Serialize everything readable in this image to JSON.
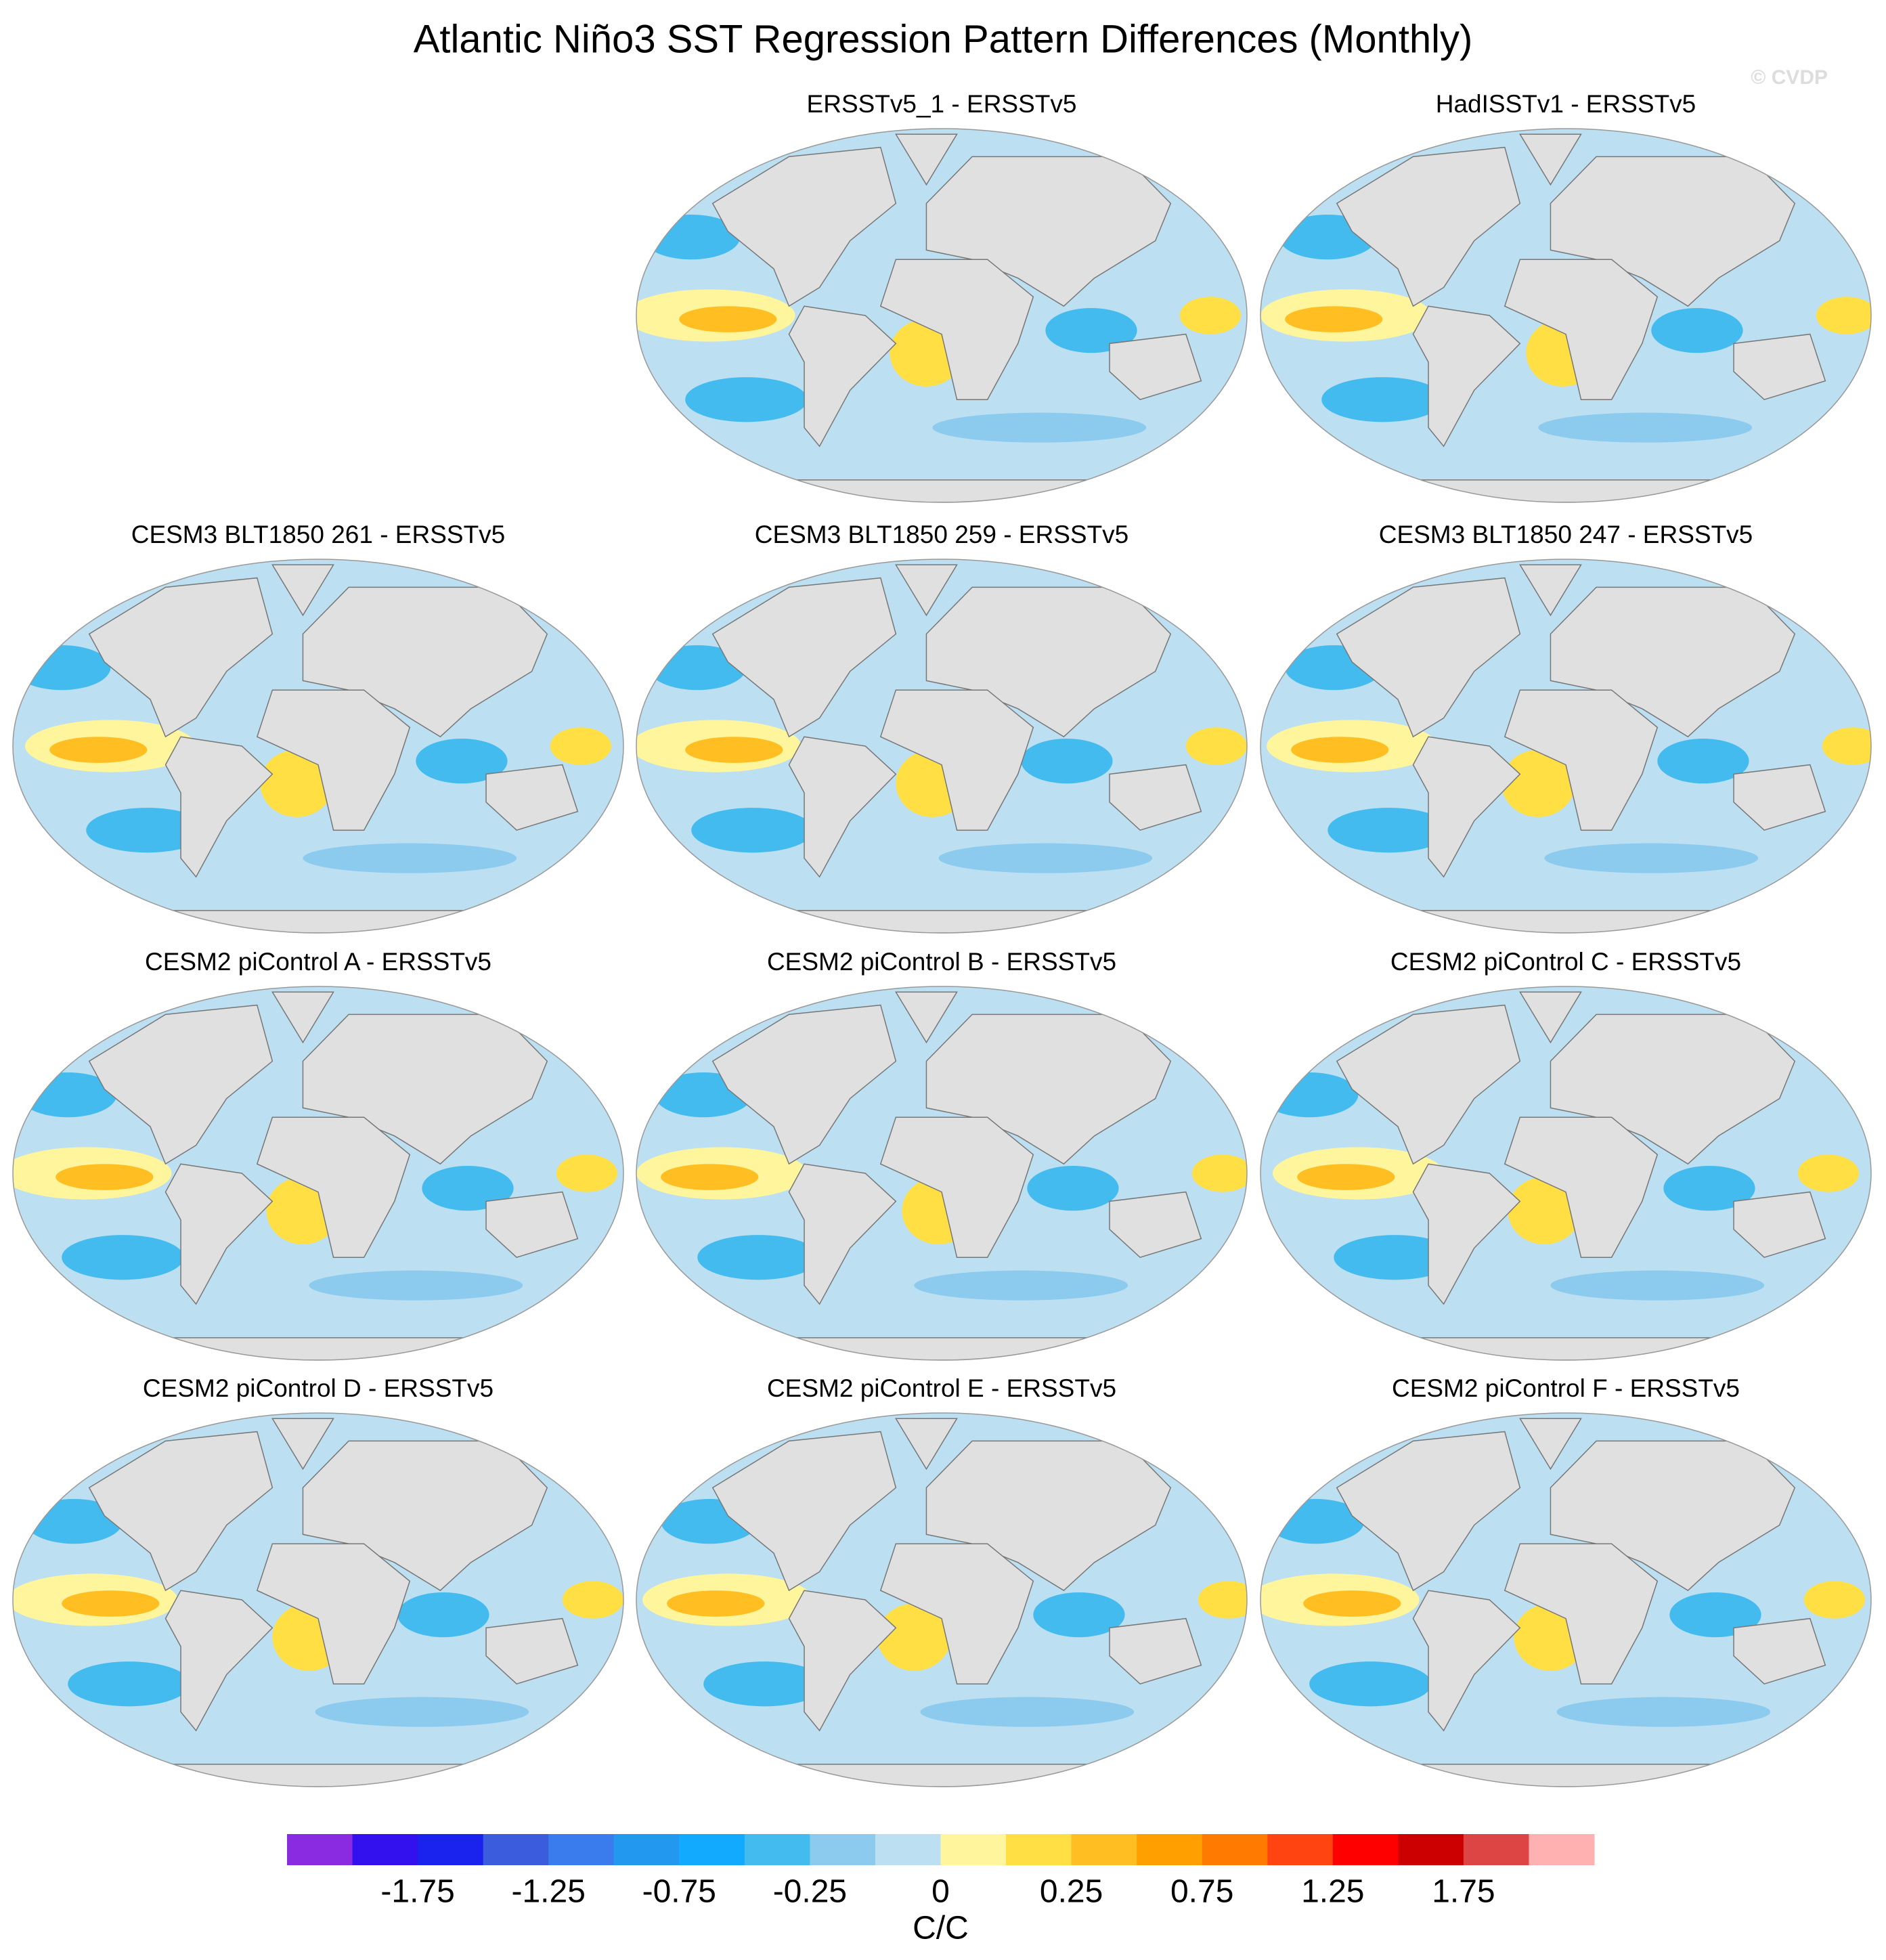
{
  "title": "Atlantic Niño3 SST Regression Pattern Differences (Monthly)",
  "watermark": "© CVDP",
  "panels": [
    {
      "title": "ERSSTv5_1 - ERSSTv5"
    },
    {
      "title": "HadISSTv1 - ERSSTv5"
    },
    {
      "title": "CESM3 BLT1850 261 - ERSSTv5"
    },
    {
      "title": "CESM3 BLT1850 259 - ERSSTv5"
    },
    {
      "title": "CESM3 BLT1850 247 - ERSSTv5"
    },
    {
      "title": "CESM2 piControl A - ERSSTv5"
    },
    {
      "title": "CESM2 piControl B - ERSSTv5"
    },
    {
      "title": "CESM2 piControl C - ERSSTv5"
    },
    {
      "title": "CESM2 piControl D - ERSSTv5"
    },
    {
      "title": "CESM2 piControl E - ERSSTv5"
    },
    {
      "title": "CESM2 piControl F - ERSSTv5"
    }
  ],
  "colorbar": {
    "label": "C/C",
    "colors": [
      "#8a2be2",
      "#3311ee",
      "#1a22ee",
      "#3a5cdd",
      "#3a7cee",
      "#2299ee",
      "#11aaff",
      "#44bbee",
      "#8ccbee",
      "#bcdff2",
      "#fff59d",
      "#ffdf44",
      "#ffbf22",
      "#ff9f00",
      "#ff7a00",
      "#ff4411",
      "#ff0000",
      "#cc0000",
      "#dd4444",
      "#ffb0b0"
    ],
    "ticks": [
      -1.75,
      -1.25,
      -0.75,
      -0.25,
      0,
      0.25,
      0.75,
      1.25,
      1.75
    ]
  }
}
